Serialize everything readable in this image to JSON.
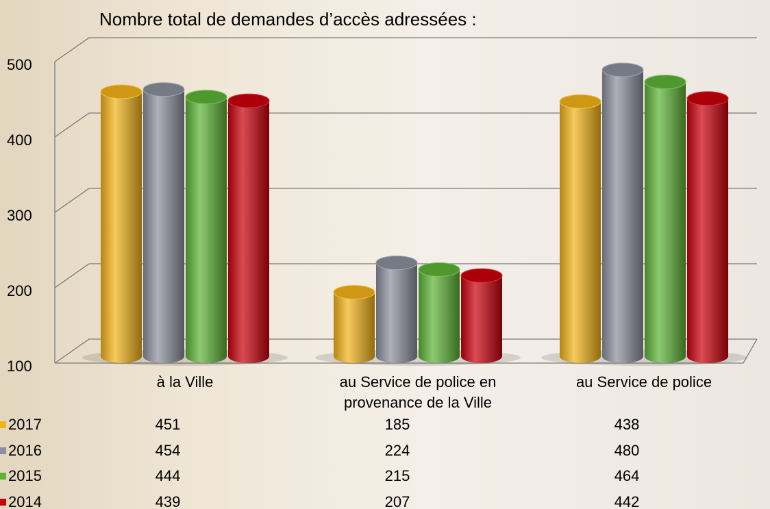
{
  "chart_data": {
    "type": "bar",
    "title": "Nombre total de demandes d’accès adressées :",
    "categories": [
      "à la Ville",
      "au Service de police en provenance de la Ville",
      "au Service de police"
    ],
    "series": [
      {
        "name": "2017",
        "color": "#f2b319",
        "values": [
          451,
          185,
          438
        ]
      },
      {
        "name": "2016",
        "color": "#8b909c",
        "values": [
          454,
          224,
          480
        ]
      },
      {
        "name": "2015",
        "color": "#5db336",
        "values": [
          444,
          215,
          464
        ]
      },
      {
        "name": "2014",
        "color": "#c9000b",
        "values": [
          439,
          207,
          442
        ]
      }
    ],
    "ylim": [
      100,
      500
    ],
    "yticks": [
      100,
      200,
      300,
      400,
      500
    ],
    "grid": true
  }
}
